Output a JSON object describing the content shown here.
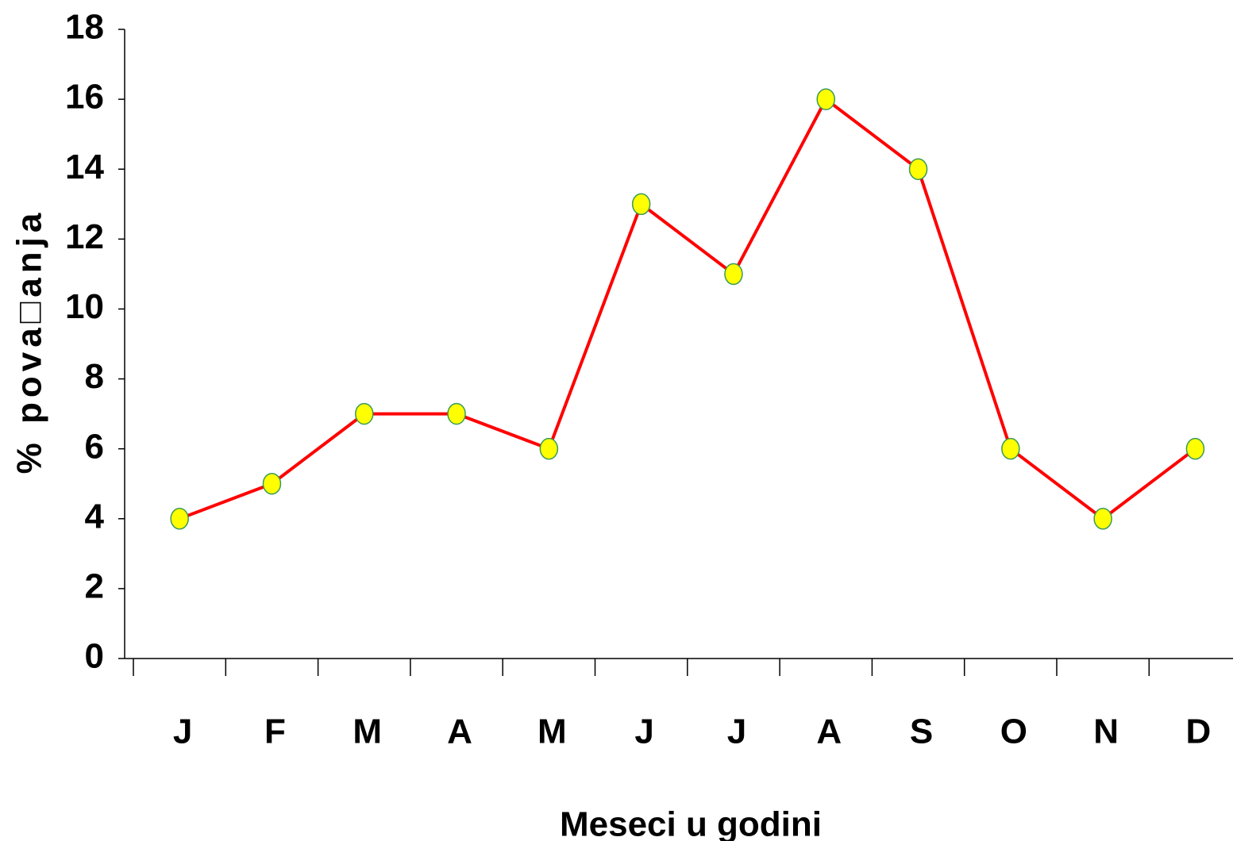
{
  "chart_data": {
    "type": "line",
    "xlabel": "Meseci u godini",
    "ylabel": "% pova□anja",
    "categories": [
      "J",
      "F",
      "M",
      "A",
      "M",
      "J",
      "J",
      "A",
      "S",
      "O",
      "N",
      "D"
    ],
    "series": [
      {
        "name": null,
        "color": "#ff0000",
        "marker_color": "#ffff00",
        "values": [
          4,
          5,
          7,
          7,
          6,
          13,
          11,
          16,
          14,
          6,
          4,
          6
        ]
      }
    ],
    "ylim": [
      0,
      18
    ],
    "yticks": [
      0,
      2,
      4,
      6,
      8,
      10,
      12,
      14,
      16,
      18
    ],
    "grid": false
  }
}
